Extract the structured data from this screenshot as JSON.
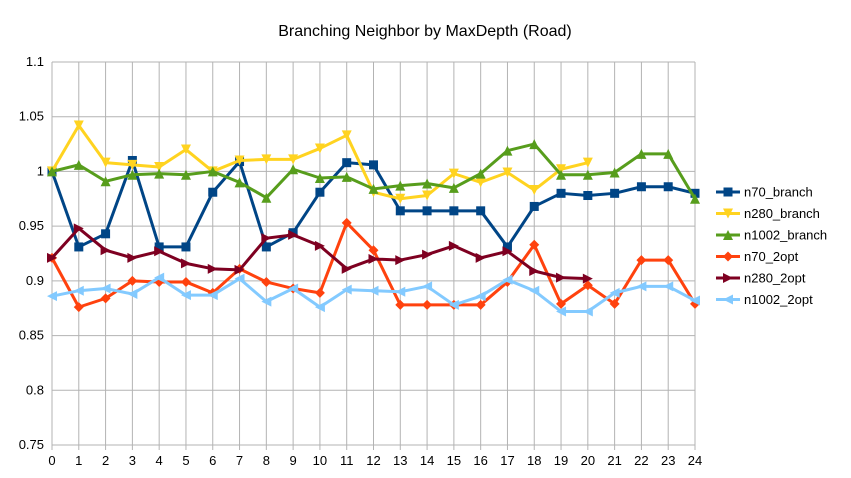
{
  "chart_data": {
    "type": "line",
    "title": "Branching Neighbor by MaxDepth (Road)",
    "xlabel": "",
    "ylabel": "",
    "x": [
      0,
      1,
      2,
      3,
      4,
      5,
      6,
      7,
      8,
      9,
      10,
      11,
      12,
      13,
      14,
      15,
      16,
      17,
      18,
      19,
      20,
      21,
      22,
      23,
      24
    ],
    "x_tick_labels": [
      "0",
      "1",
      "2",
      "3",
      "4",
      "5",
      "6",
      "7",
      "8",
      "9",
      "10",
      "11",
      "12",
      "13",
      "14",
      "15",
      "16",
      "17",
      "18",
      "19",
      "20",
      "21",
      "22",
      "23",
      "24"
    ],
    "ylim": [
      0.75,
      1.1
    ],
    "y_ticks": [
      0.75,
      0.8,
      0.85,
      0.9,
      0.95,
      1,
      1.05,
      1.1
    ],
    "y_tick_labels": [
      "0.75",
      "0.8",
      "0.85",
      "0.9",
      "0.95",
      "1",
      "1.05",
      "1.1"
    ],
    "grid": true,
    "legend_position": "right",
    "series": [
      {
        "name": "n70_branch",
        "color": "#004586",
        "marker": "square",
        "values": [
          1.0,
          0.931,
          0.943,
          1.01,
          0.931,
          0.931,
          0.981,
          1.009,
          0.931,
          0.944,
          0.981,
          1.008,
          1.006,
          0.964,
          0.964,
          0.964,
          0.964,
          0.931,
          0.968,
          0.98,
          0.978,
          0.98,
          0.986,
          0.986,
          0.98
        ]
      },
      {
        "name": "n280_branch",
        "color": "#ffd320",
        "marker": "triangle-down",
        "values": [
          1.0,
          1.042,
          1.008,
          1.006,
          1.004,
          1.02,
          1.0,
          1.01,
          1.011,
          1.011,
          1.021,
          1.033,
          0.981,
          0.975,
          0.978,
          0.998,
          0.99,
          0.999,
          0.983,
          1.002,
          1.008,
          null,
          null,
          null,
          null
        ]
      },
      {
        "name": "n1002_branch",
        "color": "#579d1c",
        "marker": "triangle-up",
        "values": [
          1.0,
          1.006,
          0.991,
          0.997,
          0.998,
          0.997,
          1.0,
          0.99,
          0.976,
          1.002,
          0.994,
          0.995,
          0.984,
          0.987,
          0.989,
          0.985,
          0.998,
          1.019,
          1.025,
          0.997,
          0.997,
          0.999,
          1.016,
          1.016,
          0.975
        ]
      },
      {
        "name": "n70_2opt",
        "color": "#ff420e",
        "marker": "diamond",
        "values": [
          0.921,
          0.876,
          0.884,
          0.9,
          0.899,
          0.899,
          0.889,
          0.911,
          0.899,
          0.893,
          0.889,
          0.953,
          0.928,
          0.878,
          0.878,
          0.878,
          0.878,
          0.899,
          0.933,
          0.879,
          0.896,
          0.879,
          0.919,
          0.919,
          0.879
        ]
      },
      {
        "name": "n280_2opt",
        "color": "#7e0021",
        "marker": "triangle-right",
        "values": [
          0.921,
          0.948,
          0.928,
          0.921,
          0.927,
          0.916,
          0.911,
          0.91,
          0.939,
          0.942,
          0.932,
          0.911,
          0.92,
          0.919,
          0.924,
          0.932,
          0.921,
          0.927,
          0.909,
          0.903,
          0.902,
          null,
          null,
          null,
          null
        ]
      },
      {
        "name": "n1002_2opt",
        "color": "#83caff",
        "marker": "triangle-left",
        "values": [
          0.886,
          0.891,
          0.893,
          0.888,
          0.903,
          0.887,
          0.887,
          0.902,
          0.881,
          0.893,
          0.876,
          0.892,
          0.891,
          0.89,
          0.895,
          0.878,
          0.886,
          0.901,
          0.891,
          0.872,
          0.872,
          0.889,
          0.895,
          0.895,
          0.882
        ]
      }
    ]
  }
}
